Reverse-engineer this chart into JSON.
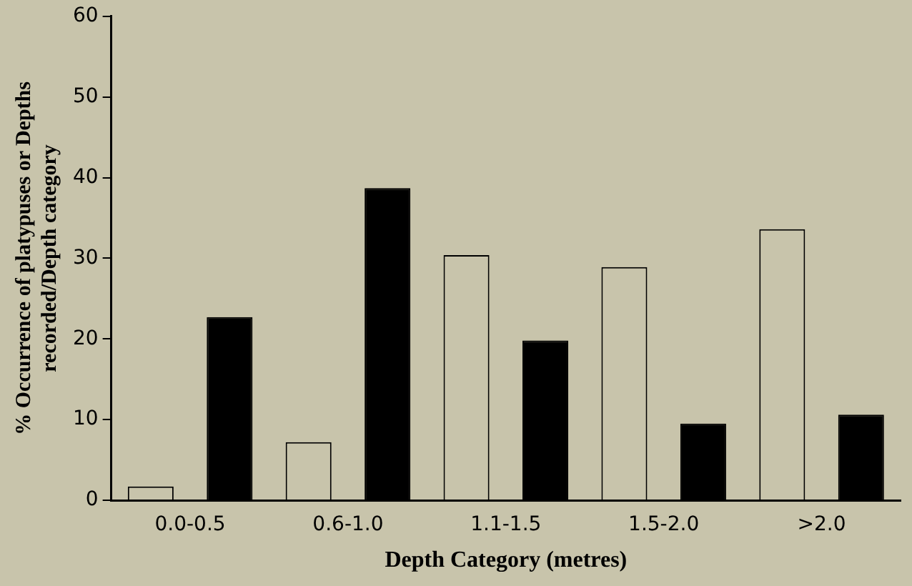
{
  "chart_data": {
    "type": "bar",
    "xlabel": "Depth Category (metres)",
    "ylabel": "% Occurrence of platypuses or Depths recorded/Depth category",
    "categories": [
      "0.0-0.5",
      "0.6-1.0",
      "1.1-1.5",
      "1.5-2.0",
      ">2.0"
    ],
    "series": [
      {
        "color": "#c8c4ab",
        "values": [
          1.7,
          7.2,
          30.4,
          28.9,
          33.6
        ]
      },
      {
        "color": "#000000",
        "values": [
          22.7,
          38.7,
          19.8,
          9.5,
          10.6
        ]
      }
    ],
    "ylim": [
      0,
      60
    ],
    "yticks": [
      0,
      10,
      20,
      30,
      40,
      50,
      60
    ],
    "grid": false,
    "legend": false
  }
}
